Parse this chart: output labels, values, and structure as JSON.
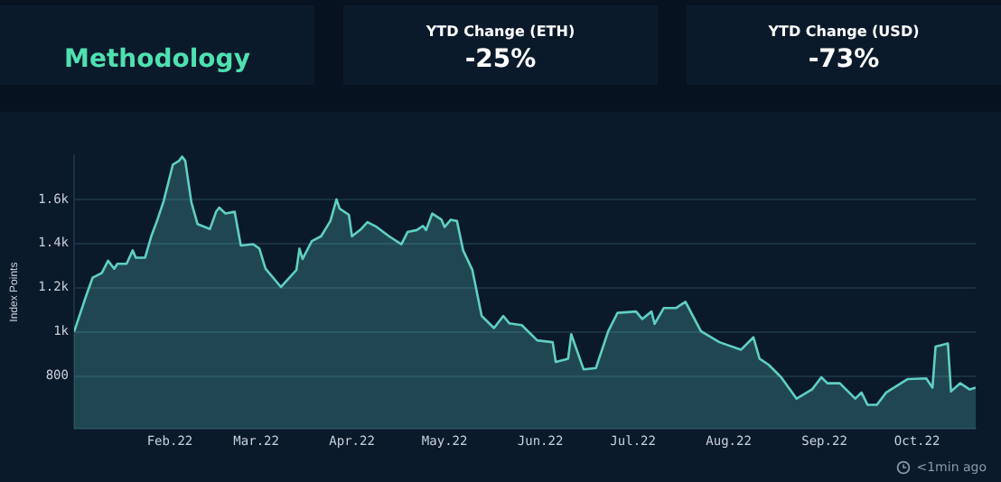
{
  "chart_data": [
    {
      "type": "other",
      "annotations": [
        "Methodology"
      ]
    },
    {
      "type": "other",
      "title": "YTD Change (ETH)",
      "annotations": [
        "-25%"
      ]
    },
    {
      "type": "other",
      "title": "YTD Change (USD)",
      "annotations": [
        "-73%"
      ]
    },
    {
      "type": "area",
      "ylabel": "Index Points",
      "color": "#5fcfc3",
      "grid": "y",
      "legend": false,
      "annotations": [
        "<1min ago"
      ],
      "xlim": [
        "2022-01-01",
        "2022-10-20"
      ],
      "xticks": [
        {
          "value": "2022-02-01",
          "label": "Feb.22"
        },
        {
          "value": "2022-03-01",
          "label": "Mar.22"
        },
        {
          "value": "2022-04-01",
          "label": "Apr.22"
        },
        {
          "value": "2022-05-01",
          "label": "May.22"
        },
        {
          "value": "2022-06-01",
          "label": "Jun.22"
        },
        {
          "value": "2022-07-01",
          "label": "Jul.22"
        },
        {
          "value": "2022-08-01",
          "label": "Aug.22"
        },
        {
          "value": "2022-09-01",
          "label": "Sep.22"
        },
        {
          "value": "2022-10-01",
          "label": "Oct.22"
        }
      ],
      "ylim": [
        560,
        1800
      ],
      "yticks": [
        800,
        {
          "value": 1000,
          "label": "1k"
        },
        {
          "value": 1200,
          "label": "1.2k"
        },
        {
          "value": 1400,
          "label": "1.4k"
        },
        {
          "value": 1600,
          "label": "1.6k"
        }
      ],
      "x": [
        "2022-01-01",
        "2022-01-05",
        "2022-01-07",
        "2022-01-10",
        "2022-01-12",
        "2022-01-14",
        "2022-01-15",
        "2022-01-18",
        "2022-01-20",
        "2022-01-21",
        "2022-01-24",
        "2022-01-26",
        "2022-01-28",
        "2022-01-30",
        "2022-02-02",
        "2022-02-04",
        "2022-02-05",
        "2022-02-06",
        "2022-02-08",
        "2022-02-10",
        "2022-02-14",
        "2022-02-16",
        "2022-02-17",
        "2022-02-19",
        "2022-02-22",
        "2022-02-24",
        "2022-02-28",
        "2022-03-02",
        "2022-03-04",
        "2022-03-09",
        "2022-03-14",
        "2022-03-15",
        "2022-03-16",
        "2022-03-19",
        "2022-03-22",
        "2022-03-25",
        "2022-03-27",
        "2022-03-28",
        "2022-03-31",
        "2022-04-01",
        "2022-04-04",
        "2022-04-06",
        "2022-04-09",
        "2022-04-13",
        "2022-04-17",
        "2022-04-19",
        "2022-04-22",
        "2022-04-24",
        "2022-04-25",
        "2022-04-27",
        "2022-04-30",
        "2022-05-01",
        "2022-05-03",
        "2022-05-05",
        "2022-05-07",
        "2022-05-10",
        "2022-05-13",
        "2022-05-17",
        "2022-05-20",
        "2022-05-22",
        "2022-05-26",
        "2022-05-31",
        "2022-06-05",
        "2022-06-06",
        "2022-06-10",
        "2022-06-11",
        "2022-06-15",
        "2022-06-19",
        "2022-06-23",
        "2022-06-26",
        "2022-07-02",
        "2022-07-04",
        "2022-07-07",
        "2022-07-08",
        "2022-07-11",
        "2022-07-15",
        "2022-07-18",
        "2022-07-23",
        "2022-07-29",
        "2022-08-05",
        "2022-08-09",
        "2022-08-11",
        "2022-08-14",
        "2022-08-18",
        "2022-08-23",
        "2022-08-28",
        "2022-08-31",
        "2022-09-02",
        "2022-09-06",
        "2022-09-11",
        "2022-09-13",
        "2022-09-15",
        "2022-09-18",
        "2022-09-21",
        "2022-09-28",
        "2022-10-04",
        "2022-10-06",
        "2022-10-07",
        "2022-10-11",
        "2022-10-12",
        "2022-10-15",
        "2022-10-18",
        "2022-10-20"
      ],
      "values": [
        1000,
        1167,
        1245,
        1267,
        1322,
        1286,
        1308,
        1308,
        1369,
        1336,
        1336,
        1433,
        1508,
        1592,
        1758,
        1775,
        1794,
        1775,
        1586,
        1488,
        1466,
        1544,
        1563,
        1536,
        1544,
        1391,
        1397,
        1377,
        1286,
        1203,
        1280,
        1377,
        1330,
        1411,
        1433,
        1502,
        1600,
        1558,
        1530,
        1433,
        1466,
        1497,
        1475,
        1433,
        1397,
        1452,
        1461,
        1480,
        1461,
        1536,
        1508,
        1475,
        1508,
        1502,
        1369,
        1280,
        1072,
        1017,
        1072,
        1038,
        1030,
        961,
        953,
        863,
        878,
        989,
        830,
        836,
        1003,
        1086,
        1092,
        1058,
        1092,
        1036,
        1108,
        1108,
        1136,
        1003,
        953,
        919,
        975,
        878,
        850,
        794,
        697,
        739,
        794,
        767,
        767,
        697,
        725,
        669,
        669,
        725,
        786,
        789,
        747,
        933,
        947,
        730,
        767,
        739,
        747
      ]
    }
  ]
}
